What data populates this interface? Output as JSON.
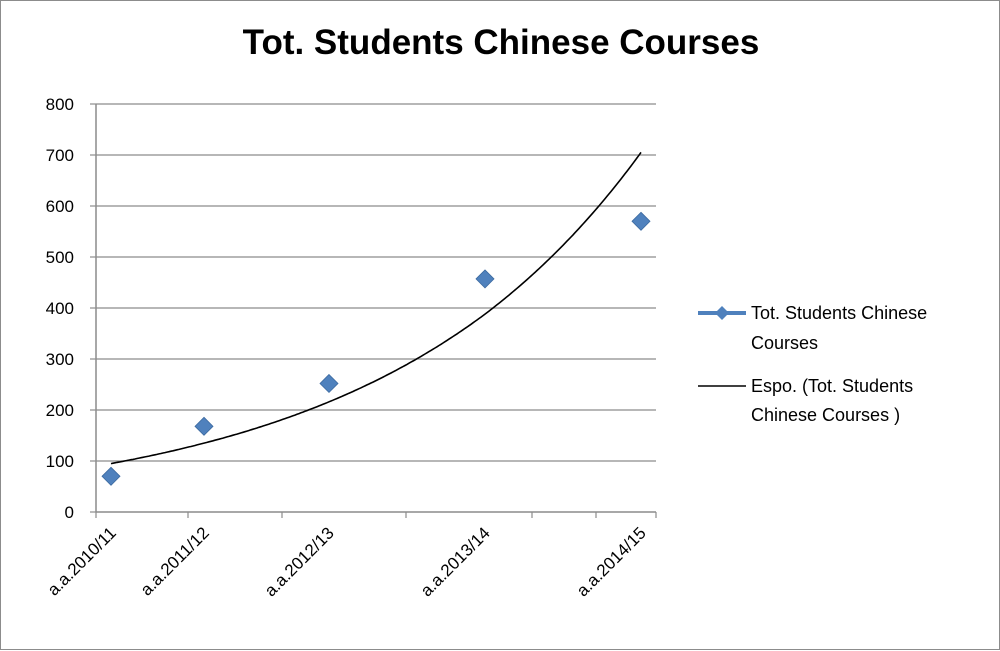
{
  "chart_data": {
    "type": "scatter",
    "title": "Tot. Students Chinese Courses",
    "xlabel": "",
    "ylabel": "",
    "ylim": [
      0,
      800
    ],
    "yticks": [
      0,
      100,
      200,
      300,
      400,
      500,
      600,
      700,
      800
    ],
    "grid": true,
    "legend_position": "right",
    "categories": [
      "a.a.2010/11",
      "a.a.2011/12",
      "a.a.2012/13",
      "a.a.2013/14",
      "a.a.2014/15"
    ],
    "series": [
      {
        "name": "Tot. Students Chinese Courses",
        "legend_lines": [
          "Tot. Students Chinese",
          "Courses"
        ],
        "color": "#4f81bd",
        "marker": "diamond",
        "points": [
          {
            "x": "a.a.2010/11",
            "y": 70
          },
          {
            "x": "a.a.2011/12",
            "y": 168
          },
          {
            "x": "a.a.2012/13",
            "y": 252
          },
          {
            "x": "a.a.2013/14",
            "y": 457
          },
          {
            "x": "a.a.2014/15",
            "y": 570
          }
        ]
      },
      {
        "name": "Espo. (Tot. Students Chinese Courses )",
        "legend_lines": [
          "Espo. (Tot. Students",
          "Chinese Courses )"
        ],
        "color": "#000000",
        "kind": "exponential-trendline",
        "values": [
          95,
          135,
          216,
          388,
          705
        ]
      }
    ]
  }
}
